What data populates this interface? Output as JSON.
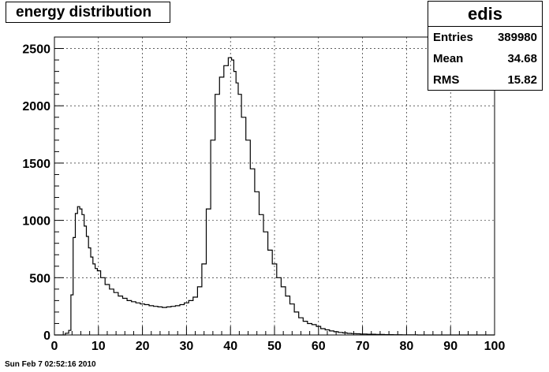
{
  "chart_data": {
    "type": "histogram",
    "title": "energy distribution",
    "xlabel": "",
    "ylabel": "",
    "xlim": [
      0,
      100
    ],
    "ylim": [
      0,
      2600
    ],
    "x_ticks": [
      0,
      10,
      20,
      30,
      40,
      50,
      60,
      70,
      80,
      90,
      100
    ],
    "y_ticks": [
      0,
      500,
      1000,
      1500,
      2000,
      2500
    ],
    "grid": true,
    "legend": "top-right stats box",
    "series": [
      {
        "x": [
          0,
          1,
          2,
          3,
          3.5,
          4,
          4.5,
          5,
          5.5,
          6,
          6.5,
          7,
          7.5,
          8,
          8.5,
          9,
          9.5,
          10,
          11,
          12,
          13,
          14,
          15,
          16,
          17,
          18,
          19,
          20,
          21,
          22,
          23,
          24,
          25,
          26,
          27,
          28,
          29,
          30,
          31,
          32,
          33,
          34,
          35,
          36,
          37,
          38,
          39,
          40,
          40.5,
          41,
          41.5,
          42,
          43,
          44,
          45,
          46,
          47,
          48,
          49,
          50,
          51,
          52,
          53,
          54,
          55,
          56,
          57,
          58,
          59,
          60,
          61,
          62,
          63,
          64,
          65,
          66,
          67,
          68,
          69,
          70,
          72,
          74,
          76,
          78,
          80,
          85,
          90,
          95,
          100
        ],
        "y": [
          0,
          0,
          0,
          15,
          40,
          350,
          850,
          1060,
          1120,
          1100,
          1050,
          950,
          860,
          760,
          680,
          620,
          580,
          560,
          500,
          440,
          400,
          370,
          340,
          320,
          300,
          290,
          280,
          270,
          265,
          255,
          250,
          245,
          240,
          245,
          250,
          255,
          265,
          280,
          300,
          330,
          420,
          620,
          1100,
          1700,
          2100,
          2250,
          2350,
          2420,
          2400,
          2300,
          2200,
          2100,
          1900,
          1700,
          1450,
          1250,
          1050,
          900,
          740,
          620,
          500,
          420,
          340,
          270,
          200,
          150,
          120,
          100,
          90,
          75,
          55,
          45,
          35,
          28,
          22,
          18,
          14,
          12,
          10,
          8,
          6,
          4,
          3,
          2,
          1,
          0,
          0,
          0,
          0
        ]
      }
    ],
    "stats": {
      "name": "edis",
      "entries_label": "Entries",
      "entries": "389980",
      "mean_label": "Mean",
      "mean": "34.68",
      "rms_label": "RMS",
      "rms": "15.82"
    }
  },
  "timestamp": "Sun Feb  7 02:52:16 2010"
}
